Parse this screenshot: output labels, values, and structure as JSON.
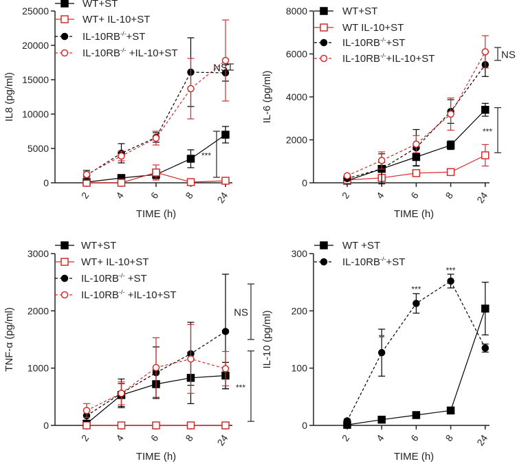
{
  "chart_data": [
    {
      "type": "line",
      "ylabel": "IL8 (pg/ml)",
      "xlabel": "TIME (h)",
      "categories": [
        "2",
        "4",
        "6",
        "8",
        "24"
      ],
      "ylim": [
        0,
        25000
      ],
      "yticks": [
        0,
        5000,
        10000,
        15000,
        20000,
        25000
      ],
      "series": [
        {
          "name": "WT+ST",
          "label": {
            "base": "WT+ST",
            "sup": "",
            "rest": ""
          },
          "color": "#000000",
          "marker": "square-filled",
          "dash": false,
          "values": [
            100,
            700,
            1200,
            3500,
            7000
          ],
          "err": [
            300,
            200,
            600,
            1300,
            1200
          ]
        },
        {
          "name": "WT+ IL-10+ST",
          "label": {
            "base": "WT+ IL-10+ST",
            "sup": "",
            "rest": ""
          },
          "color": "#d42a2a",
          "marker": "square-open",
          "dash": false,
          "values": [
            0,
            0,
            1500,
            100,
            300
          ],
          "err": [
            100,
            100,
            1100,
            100,
            100
          ]
        },
        {
          "name": "IL-10RB-/-+ST",
          "label": {
            "base": "IL-10RB",
            "sup": "-/-",
            "rest": "+ST"
          },
          "color": "#000000",
          "marker": "circle-filled",
          "dash": true,
          "values": [
            1100,
            4300,
            6600,
            16100,
            16000
          ],
          "err": [
            700,
            1400,
            700,
            5000,
            1200
          ]
        },
        {
          "name": "IL-10RB-/- +IL-10+ST",
          "label": {
            "base": "IL-10RB",
            "sup": "-/-",
            "rest": " +IL-10+ST"
          },
          "color": "#d42a2a",
          "marker": "circle-open",
          "dash": true,
          "values": [
            1200,
            3900,
            6500,
            13700,
            17800
          ],
          "err": [
            400,
            700,
            1000,
            4400,
            5900
          ]
        }
      ],
      "annotations": [
        {
          "text": "NS",
          "y1": 16400,
          "y2": 17300
        },
        {
          "text": "***",
          "y1": 800,
          "y2": 7500
        }
      ]
    },
    {
      "type": "line",
      "ylabel": "IL-6 (pg/ml)",
      "xlabel": "TIME (h)",
      "categories": [
        "2",
        "4",
        "6",
        "8",
        "24"
      ],
      "ylim": [
        0,
        8000
      ],
      "yticks": [
        0,
        2000,
        4000,
        6000,
        8000
      ],
      "series": [
        {
          "name": "WT+ST",
          "label": {
            "base": "WT+ST",
            "sup": "",
            "rest": ""
          },
          "color": "#000000",
          "marker": "square-filled",
          "dash": false,
          "values": [
            100,
            650,
            1200,
            1750,
            3400
          ],
          "err": [
            50,
            300,
            400,
            200,
            300
          ]
        },
        {
          "name": "WT IL-10+ST",
          "label": {
            "base": "WT IL-10+ST",
            "sup": "",
            "rest": ""
          },
          "color": "#d42a2a",
          "marker": "square-open",
          "dash": false,
          "values": [
            130,
            230,
            450,
            500,
            1280
          ],
          "err": [
            30,
            50,
            50,
            50,
            500
          ]
        },
        {
          "name": "IL-10RB-/-+ST",
          "label": {
            "base": "IL-10RB",
            "sup": "-/-",
            "rest": "+ST"
          },
          "color": "#000000",
          "marker": "circle-filled",
          "dash": true,
          "values": [
            200,
            650,
            1630,
            3320,
            5500
          ],
          "err": [
            50,
            700,
            850,
            550,
            550
          ]
        },
        {
          "name": "IL-10RB-/-+IL-10+ST",
          "label": {
            "base": "IL-10RB",
            "sup": "-/-",
            "rest": "+IL-10+ST"
          },
          "color": "#d42a2a",
          "marker": "circle-open",
          "dash": true,
          "values": [
            330,
            1040,
            1800,
            3200,
            6100
          ],
          "err": [
            50,
            400,
            400,
            750,
            750
          ]
        }
      ],
      "annotations": [
        {
          "text": "NS",
          "y1": 5700,
          "y2": 6300
        },
        {
          "text": "***",
          "y1": 1400,
          "y2": 3500
        }
      ]
    },
    {
      "type": "line",
      "ylabel": "TNF-α (pg/ml)",
      "xlabel": "TIME (h)",
      "categories": [
        "2",
        "4",
        "6",
        "8",
        "24"
      ],
      "ylim": [
        0,
        3000
      ],
      "yticks": [
        0,
        1000,
        2000,
        3000
      ],
      "series": [
        {
          "name": "WT+ST",
          "label": {
            "base": "WT+ST",
            "sup": "",
            "rest": ""
          },
          "color": "#000000",
          "marker": "square-filled",
          "dash": false,
          "values": [
            30,
            530,
            720,
            830,
            870
          ],
          "err": [
            30,
            200,
            230,
            450,
            230
          ]
        },
        {
          "name": "WT+ IL-10+ST",
          "label": {
            "base": "WT+ IL-10+ST",
            "sup": "",
            "rest": ""
          },
          "color": "#d42a2a",
          "marker": "square-open",
          "dash": false,
          "values": [
            0,
            0,
            0,
            0,
            0
          ],
          "err": [
            0,
            0,
            0,
            0,
            0
          ]
        },
        {
          "name": "IL-10RB-/- +ST",
          "label": {
            "base": "IL-10RB",
            "sup": "-/-",
            "rest": " +ST"
          },
          "color": "#000000",
          "marker": "circle-filled",
          "dash": true,
          "values": [
            170,
            560,
            920,
            1250,
            1640
          ],
          "err": [
            100,
            250,
            450,
            550,
            1000
          ]
        },
        {
          "name": "IL-10RB-/- +IL-10+ST",
          "label": {
            "base": "IL-10RB",
            "sup": "-/-",
            "rest": " +IL-10+ST"
          },
          "color": "#d42a2a",
          "marker": "circle-open",
          "dash": true,
          "values": [
            260,
            560,
            1010,
            1160,
            990
          ],
          "err": [
            120,
            200,
            520,
            600,
            300
          ]
        }
      ],
      "annotations": [
        {
          "text": "NS",
          "y1": 1500,
          "y2": 2470
        },
        {
          "text": "***",
          "y1": 70,
          "y2": 1300
        }
      ]
    },
    {
      "type": "line",
      "ylabel": "IL-10 (pg/ml)",
      "xlabel": "TIME (h)",
      "categories": [
        "2",
        "4",
        "6",
        "8",
        "24"
      ],
      "ylim": [
        0,
        300
      ],
      "yticks": [
        0,
        100,
        200,
        300
      ],
      "series": [
        {
          "name": "WT +ST",
          "label": {
            "base": "WT +ST",
            "sup": "",
            "rest": ""
          },
          "color": "#000000",
          "marker": "square-filled",
          "dash": false,
          "values": [
            1,
            10,
            18,
            26,
            204
          ],
          "err": [
            1,
            2,
            3,
            2,
            46
          ]
        },
        {
          "name": "IL-10RB-/-+ST",
          "label": {
            "base": "IL-10RB",
            "sup": "-/-",
            "rest": "+ST"
          },
          "color": "#000000",
          "marker": "circle-filled",
          "dash": true,
          "values": [
            8,
            127,
            213,
            252,
            135
          ],
          "err": [
            3,
            41,
            17,
            12,
            7
          ]
        }
      ],
      "point_annotations": [
        {
          "category": "4",
          "text": "**",
          "y": 148
        },
        {
          "category": "6",
          "text": "***",
          "y": 233
        },
        {
          "category": "8",
          "text": "***",
          "y": 266
        }
      ]
    }
  ]
}
